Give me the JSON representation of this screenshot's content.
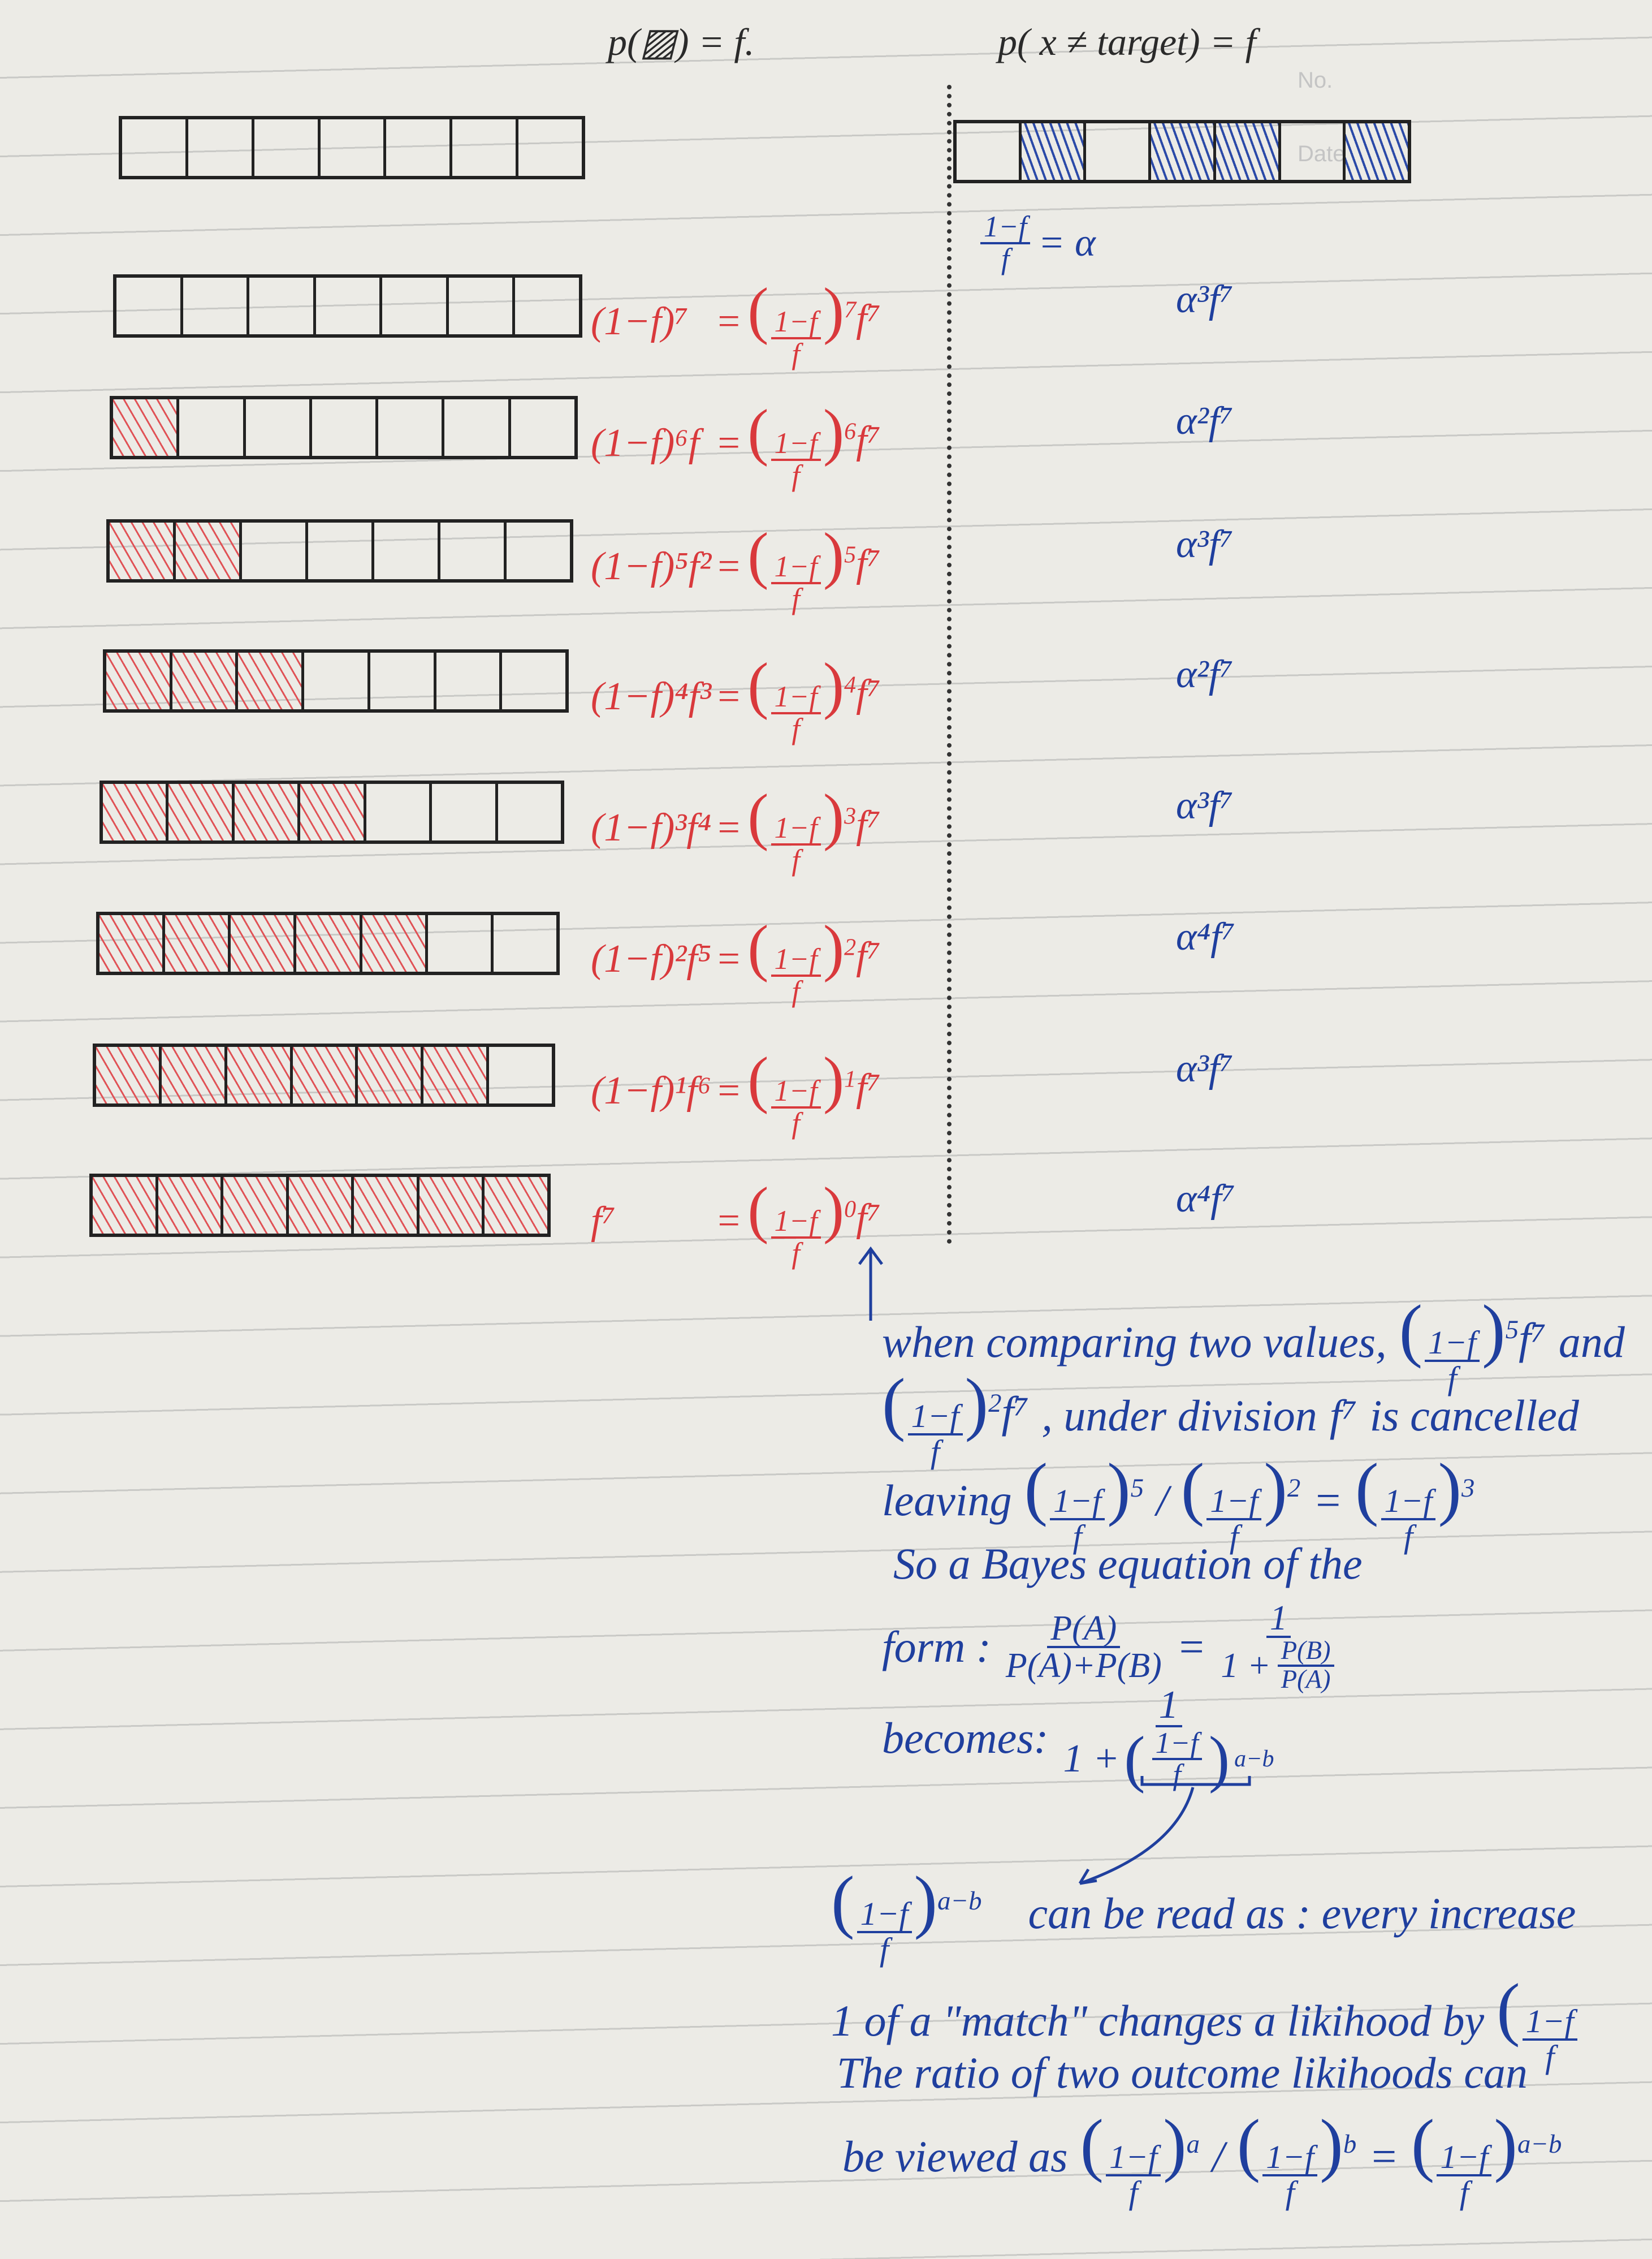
{
  "header": {
    "left": "p(▨) = f.",
    "right": "p( x ≠ target) = f",
    "right_box_glyph": "x"
  },
  "notebook_print": {
    "no": "No.",
    "date": "Date"
  },
  "alpha_def": {
    "num": "1−f",
    "den": "f",
    "rhs": "= α"
  },
  "top_right_bar": {
    "cells": [
      false,
      true,
      false,
      true,
      true,
      false,
      true
    ]
  },
  "frac": {
    "num": "1−f",
    "den": "f"
  },
  "rows": [
    {
      "shaded": 0,
      "lhs": "(1−f)⁷",
      "eq": "=",
      "exp": "7",
      "tail": "f⁷",
      "alpha": "α³f⁷"
    },
    {
      "shaded": 1,
      "lhs": "(1−f)⁶f",
      "eq": "=",
      "exp": "6",
      "tail": "f⁷",
      "alpha": "α²f⁷"
    },
    {
      "shaded": 2,
      "lhs": "(1−f)⁵f²",
      "eq": "=",
      "exp": "5",
      "tail": "f⁷",
      "alpha": "α³f⁷"
    },
    {
      "shaded": 3,
      "lhs": "(1−f)⁴f³",
      "eq": "=",
      "exp": "4",
      "tail": "f⁷",
      "alpha": "α²f⁷"
    },
    {
      "shaded": 4,
      "lhs": "(1−f)³f⁴",
      "eq": "=",
      "exp": "3",
      "tail": "f⁷",
      "alpha": "α³f⁷"
    },
    {
      "shaded": 5,
      "lhs": "(1−f)²f⁵",
      "eq": "=",
      "exp": "2",
      "tail": "f⁷",
      "alpha": "α⁴f⁷"
    },
    {
      "shaded": 6,
      "lhs": "(1−f)¹f⁶",
      "eq": "=",
      "exp": "1",
      "tail": "f⁷",
      "alpha": "α³f⁷"
    },
    {
      "shaded": 7,
      "lhs": "f⁷",
      "eq": "=",
      "exp": "0",
      "tail": "f⁷",
      "alpha": "α⁴f⁷"
    }
  ],
  "notes": {
    "l1a": "when comparing two values,",
    "l1exp": "5",
    "l1tail": "f⁷",
    "l1b": "and",
    "l2exp": "2",
    "l2tail": "f⁷",
    "l2b": ", under division",
    "l2c": "f⁷",
    "l2d": "is cancelled",
    "l3a": "leaving",
    "l3e1": "5",
    "l3slash": "/",
    "l3e2": "2",
    "l3eq": "=",
    "l3e3": "3",
    "l4": "So a Bayes equation of the",
    "l5a": "form :",
    "l5num": "P(A)",
    "l5den": "P(A)+P(B)",
    "l5eq": "=",
    "l5one": "1",
    "l5plus": "1 +",
    "l5n2": "P(B)",
    "l5d2": "P(A)",
    "l6a": "becomes:",
    "l6one": "1",
    "l6plus": "1 +",
    "l6exp": "a−b",
    "l7exp": "a−b",
    "l7": "can be read as : every increase",
    "l8": "1 of a \"match\" changes a likihood by",
    "l9": "The ratio of two outcome likihoods can",
    "l10a": "be viewed as",
    "l10e1": "a",
    "l10slash": "/",
    "l10e2": "b",
    "l10eq": "=",
    "l10e3": "a−b"
  },
  "colors": {
    "pencil": "#2a2a2a",
    "red_pen": "#d9393c",
    "blue_pen": "#1f3f9e"
  }
}
